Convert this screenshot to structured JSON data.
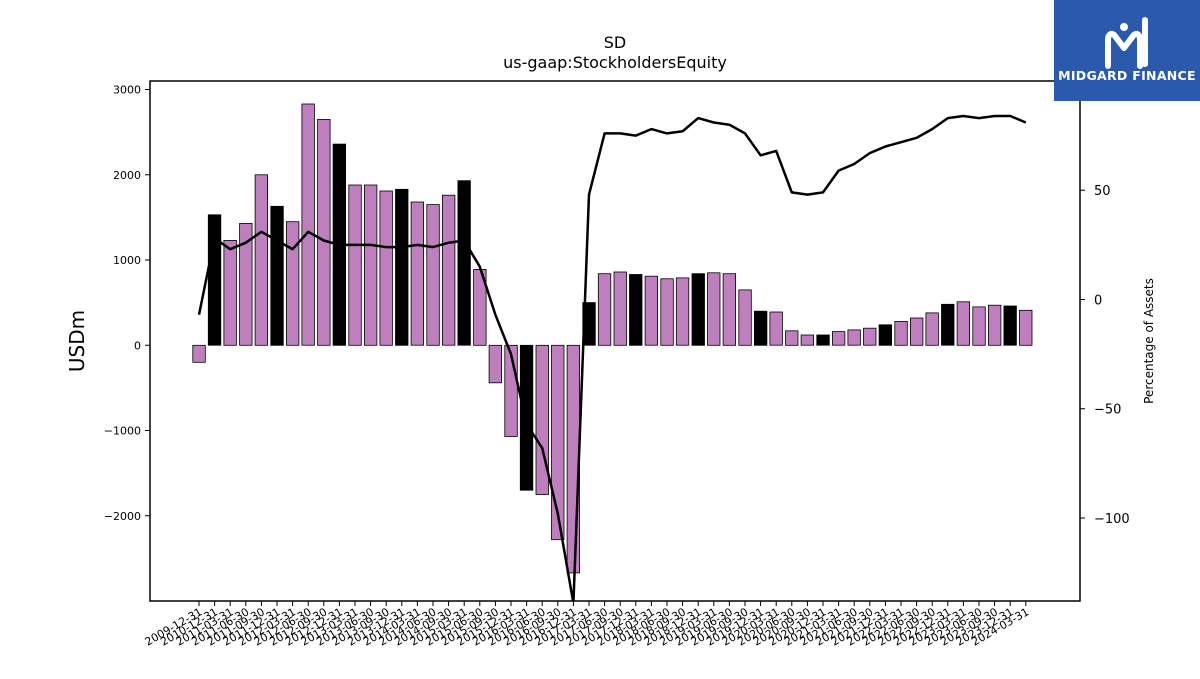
{
  "brand": {
    "name": "MIDGARD FINANCE",
    "color": "#2b5aad"
  },
  "chart_data": {
    "type": "bar",
    "title": "SD",
    "subtitle": "us-gaap:StockholdersEquity",
    "ylabel": "USDm",
    "y2label": "Percentage of Assets",
    "ylim": [
      -3000,
      3100
    ],
    "y2lim": [
      -138,
      100
    ],
    "yticks": [
      -2000,
      -1000,
      0,
      1000,
      2000,
      3000
    ],
    "yticklabels": [
      "−2000",
      "−1000",
      "0",
      "1000",
      "2000",
      "3000"
    ],
    "y2ticks": [
      -100,
      -50,
      0,
      50
    ],
    "y2ticklabels": [
      "−100",
      "−50",
      "0",
      "50"
    ],
    "grid": false,
    "colors": {
      "bar": "#bf7fbf",
      "bar_highlight": "#000000",
      "line": "#000000"
    },
    "categories": [
      "2009-12-31",
      "2010-12-31",
      "2011-03-31",
      "2011-06-30",
      "2011-09-30",
      "2011-12-31",
      "2012-03-31",
      "2012-06-30",
      "2012-09-30",
      "2012-12-31",
      "2013-03-31",
      "2013-06-30",
      "2013-09-30",
      "2013-12-31",
      "2014-03-31",
      "2014-06-30",
      "2014-09-30",
      "2015-03-31",
      "2015-06-30",
      "2015-09-30",
      "2015-12-31",
      "2016-03-31",
      "2016-06-30",
      "2016-09-30",
      "2016-12-31",
      "2017-03-31",
      "2017-06-30",
      "2017-09-30",
      "2017-12-31",
      "2018-03-31",
      "2018-06-30",
      "2018-09-30",
      "2018-12-31",
      "2019-03-31",
      "2019-06-30",
      "2019-09-30",
      "2019-12-31",
      "2020-03-31",
      "2020-06-30",
      "2020-09-30",
      "2020-12-31",
      "2021-03-31",
      "2021-06-30",
      "2021-09-30",
      "2021-12-31",
      "2022-03-31",
      "2022-06-30",
      "2022-09-30",
      "2022-12-31",
      "2023-03-31",
      "2023-06-30",
      "2023-09-30",
      "2023-12-31",
      "2024-03-31"
    ],
    "series": [
      {
        "kind": "bar",
        "values": [
          -200,
          1530,
          1230,
          1430,
          2000,
          1630,
          1450,
          2830,
          2650,
          2360,
          1880,
          1880,
          1810,
          1830,
          1680,
          1650,
          1760,
          1930,
          890,
          -440,
          -1070,
          -1700,
          -1750,
          -2280,
          -2670,
          500,
          840,
          860,
          830,
          810,
          780,
          790,
          840,
          850,
          840,
          650,
          400,
          390,
          170,
          120,
          120,
          160,
          180,
          200,
          240,
          280,
          320,
          380,
          480,
          510,
          450,
          470,
          460,
          410
        ],
        "highlight": [
          false,
          true,
          false,
          false,
          false,
          true,
          false,
          false,
          false,
          true,
          false,
          false,
          false,
          true,
          false,
          false,
          false,
          true,
          false,
          false,
          false,
          true,
          false,
          false,
          false,
          true,
          false,
          false,
          true,
          false,
          false,
          false,
          true,
          false,
          false,
          false,
          true,
          false,
          false,
          false,
          true,
          false,
          false,
          false,
          true,
          false,
          false,
          false,
          true,
          false,
          false,
          false,
          true,
          false
        ]
      },
      {
        "kind": "line",
        "axis": "right",
        "values": [
          -7,
          28,
          23,
          26,
          31,
          27,
          23,
          31,
          27,
          25,
          25,
          25,
          24,
          24,
          25,
          24,
          26,
          27,
          15,
          -7,
          -25,
          -57,
          -68,
          -98,
          -139,
          48,
          76,
          76,
          75,
          78,
          76,
          77,
          83,
          81,
          80,
          76,
          66,
          68,
          49,
          48,
          49,
          59,
          62,
          67,
          70,
          72,
          74,
          78,
          83,
          84,
          83,
          84,
          84,
          81
        ]
      }
    ]
  }
}
